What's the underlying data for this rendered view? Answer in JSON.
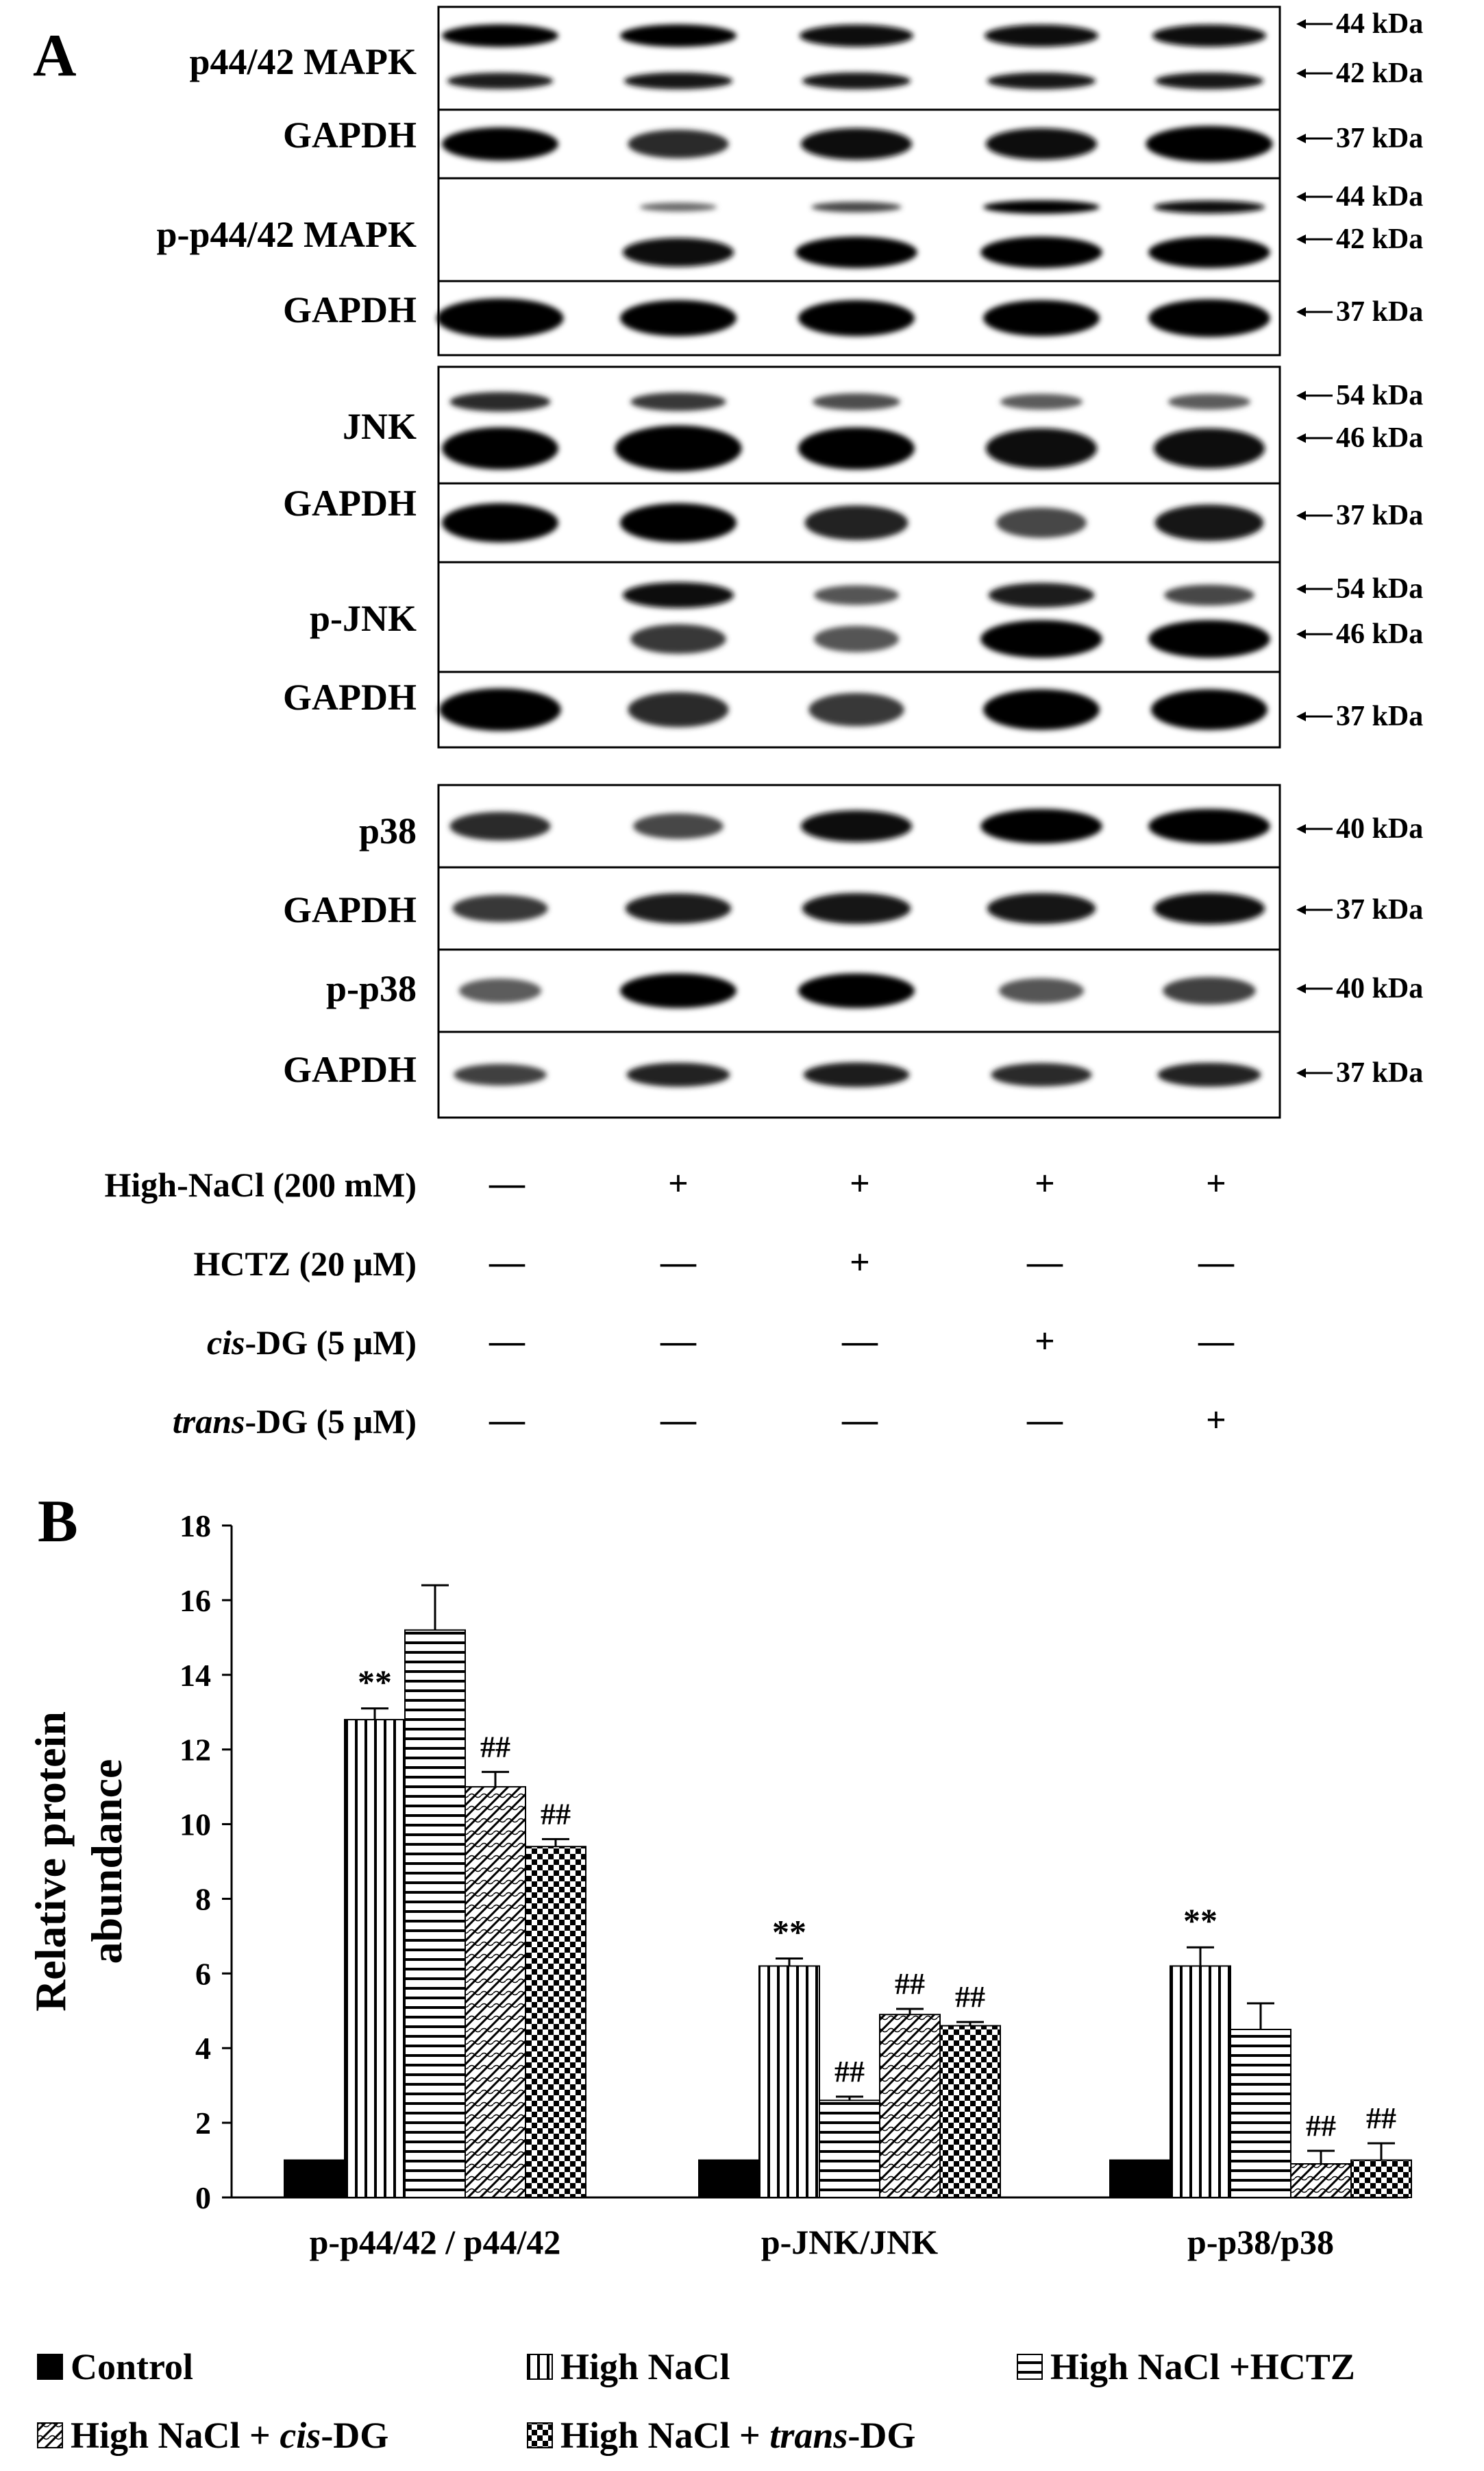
{
  "panel_a": {
    "label": "A",
    "blots": [
      {
        "label": "p44/42 MAPK",
        "markers": [
          "44 kDa",
          "42 kDa"
        ]
      },
      {
        "label": "GAPDH",
        "markers": [
          "37 kDa"
        ]
      },
      {
        "label": "p-p44/42 MAPK",
        "markers": [
          "44 kDa",
          "42 kDa"
        ]
      },
      {
        "label": "GAPDH",
        "markers": [
          "37 kDa"
        ]
      },
      {
        "label": "JNK",
        "markers": [
          "54 kDa",
          "46 kDa"
        ]
      },
      {
        "label": "GAPDH",
        "markers": [
          "37 kDa"
        ]
      },
      {
        "label": "p-JNK",
        "markers": [
          "54 kDa",
          "46 kDa"
        ]
      },
      {
        "label": "GAPDH",
        "markers": [
          "37 kDa"
        ]
      },
      {
        "label": "p38",
        "markers": [
          "40 kDa"
        ]
      },
      {
        "label": "GAPDH",
        "markers": [
          "37 kDa"
        ]
      },
      {
        "label": "p-p38",
        "markers": [
          "40 kDa"
        ]
      },
      {
        "label": "GAPDH",
        "markers": [
          "37 kDa"
        ]
      }
    ],
    "treatments": [
      {
        "label": "High-NaCl (200 mM)",
        "signs": [
          "—",
          "+",
          "+",
          "+",
          "+"
        ]
      },
      {
        "label": "HCTZ (20 μM)",
        "signs": [
          "—",
          "—",
          "+",
          "—",
          "—"
        ]
      },
      {
        "label_italic": "cis",
        "label_rest": "-DG (5 μM)",
        "signs": [
          "—",
          "—",
          "—",
          "+",
          "—"
        ]
      },
      {
        "label_italic": "trans",
        "label_rest": "-DG (5 μM)",
        "signs": [
          "—",
          "—",
          "—",
          "—",
          "+"
        ]
      }
    ]
  },
  "panel_b": {
    "label": "B",
    "legend": [
      {
        "text": "Control",
        "pattern": "solid"
      },
      {
        "text": "High NaCl",
        "pattern": "vertical"
      },
      {
        "text": "High NaCl +HCTZ",
        "pattern": "horizontal"
      },
      {
        "text_pre": "High NaCl + ",
        "text_italic": "cis",
        "text_post": "-DG",
        "pattern": "diagonal"
      },
      {
        "text_pre": "High NaCl + ",
        "text_italic": "trans",
        "text_post": "-DG",
        "pattern": "checker"
      }
    ]
  },
  "colors": {
    "ink": "#000000",
    "background": "#ffffff"
  },
  "chart_data": {
    "type": "bar",
    "ylabel": "Relative protein abundance",
    "ylim": [
      0,
      18
    ],
    "yticks": [
      0,
      2,
      4,
      6,
      8,
      10,
      12,
      14,
      16,
      18
    ],
    "grid": false,
    "legend_placement": "bottom",
    "categories": [
      "p-p44/42 / p44/42",
      "p-JNK/JNK",
      "p-p38/p38"
    ],
    "series": [
      {
        "name": "Control",
        "values": [
          1.0,
          1.0,
          1.0
        ],
        "errors": [
          0,
          0,
          0
        ],
        "annotations": [
          "",
          "",
          ""
        ]
      },
      {
        "name": "High NaCl",
        "values": [
          12.8,
          6.2,
          6.2
        ],
        "errors": [
          0.3,
          0.2,
          0.5
        ],
        "annotations": [
          "**",
          "**",
          "**"
        ]
      },
      {
        "name": "High NaCl +HCTZ",
        "values": [
          15.2,
          2.6,
          4.5
        ],
        "errors": [
          1.2,
          0.1,
          0.7
        ],
        "annotations": [
          "",
          "##",
          ""
        ]
      },
      {
        "name": "High NaCl + cis-DG",
        "values": [
          11.0,
          4.9,
          0.9
        ],
        "errors": [
          0.4,
          0.15,
          0.35
        ],
        "annotations": [
          "##",
          "##",
          "##"
        ]
      },
      {
        "name": "High NaCl + trans-DG",
        "values": [
          9.4,
          4.6,
          1.0
        ],
        "errors": [
          0.2,
          0.1,
          0.45
        ],
        "annotations": [
          "##",
          "##",
          "##"
        ]
      }
    ]
  }
}
